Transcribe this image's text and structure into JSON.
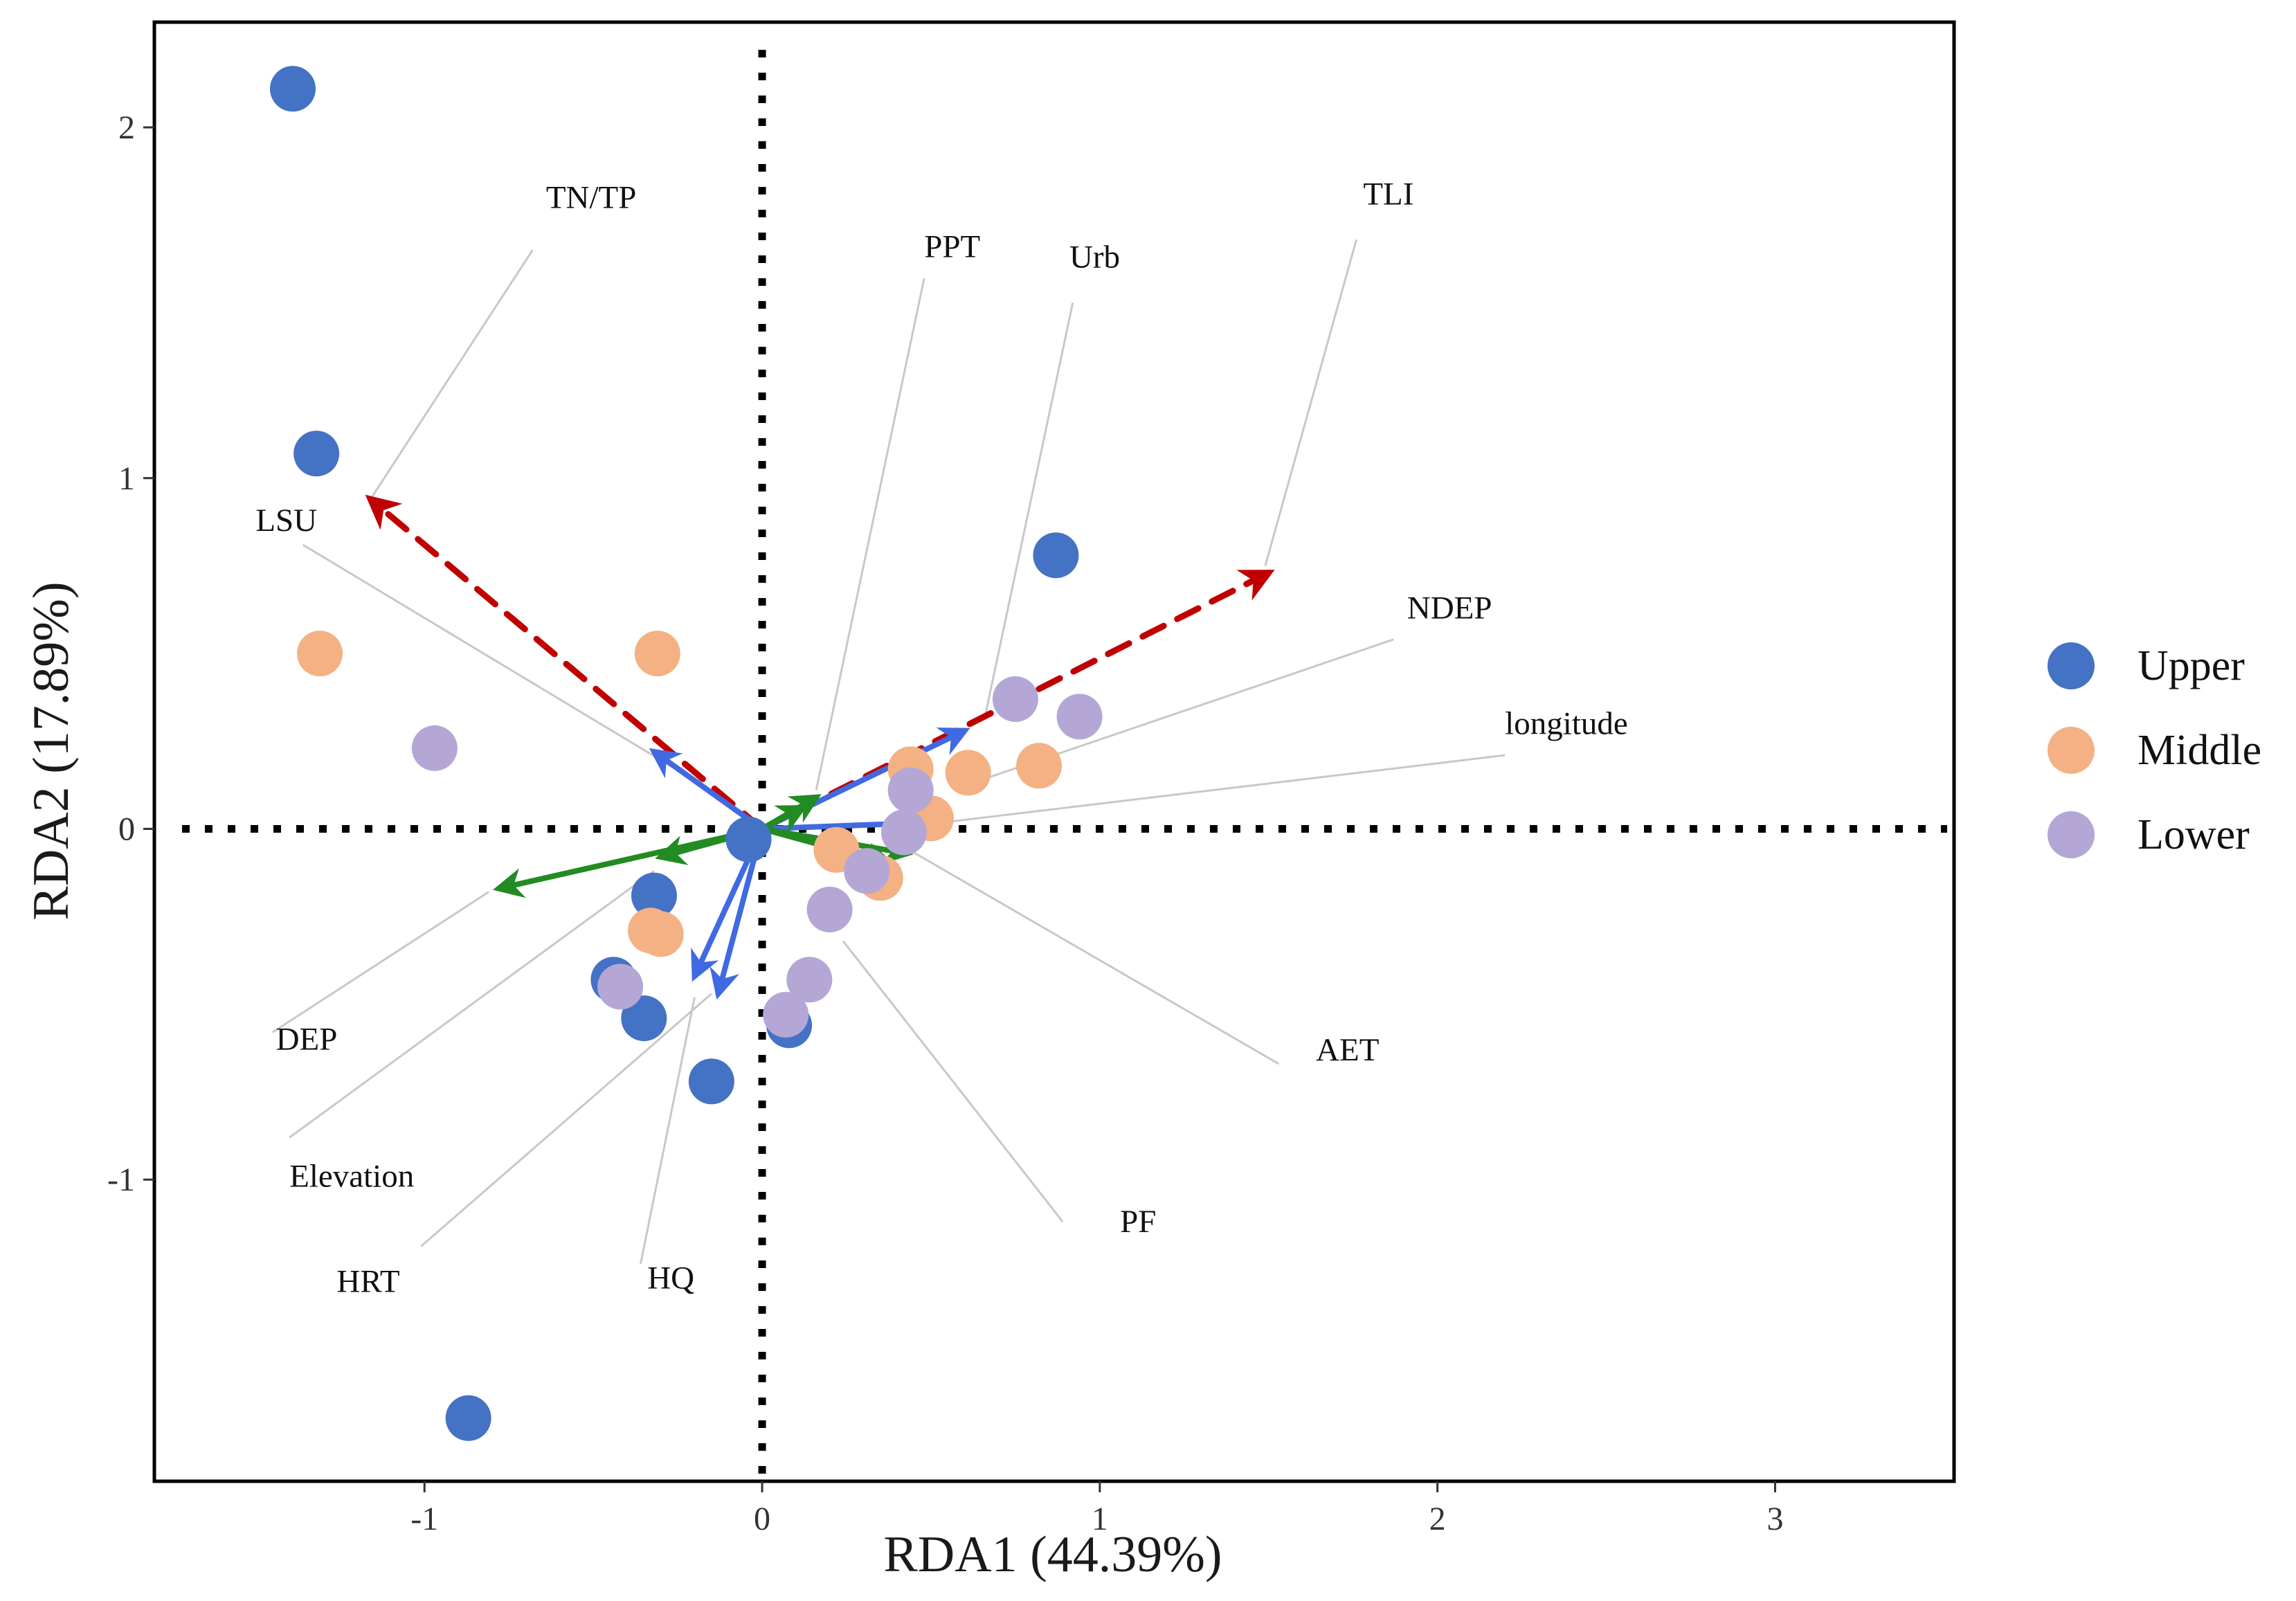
{
  "chart_data": {
    "type": "scatter",
    "title": "",
    "xlabel": "RDA1 (44.39%)",
    "ylabel": "RDA2 (17.89%)",
    "xlim": [
      -1.8,
      3.53
    ],
    "ylim": [
      -1.86,
      2.3
    ],
    "xticks": [
      -1,
      0,
      1,
      2,
      3
    ],
    "yticks": [
      -1,
      0,
      1,
      2
    ],
    "xtick_labels": [
      "-1",
      "0",
      "1",
      "2",
      "3"
    ],
    "ytick_labels": [
      "-1",
      "0",
      "1",
      "2"
    ],
    "zero_lines": "dotted",
    "legend_position": "right",
    "legend": [
      {
        "name": "Upper",
        "color": "#4472C4"
      },
      {
        "name": "Middle",
        "color": "#F4B183"
      },
      {
        "name": "Lower",
        "color": "#B4A7D6"
      }
    ],
    "series": [
      {
        "name": "Upper",
        "color": "#4472C4",
        "points": [
          [
            -1.39,
            2.11
          ],
          [
            -1.32,
            1.07
          ],
          [
            0.87,
            0.78
          ],
          [
            -0.32,
            -0.19
          ],
          [
            -0.44,
            -0.43
          ],
          [
            -0.35,
            -0.54
          ],
          [
            -0.15,
            -0.72
          ],
          [
            0.08,
            -0.56
          ],
          [
            -0.87,
            -1.68
          ],
          [
            -0.04,
            -0.03
          ]
        ]
      },
      {
        "name": "Middle",
        "color": "#F4B183",
        "points": [
          [
            -1.31,
            0.5
          ],
          [
            -0.31,
            0.5
          ],
          [
            0.44,
            0.17
          ],
          [
            0.61,
            0.16
          ],
          [
            0.82,
            0.18
          ],
          [
            0.5,
            0.03
          ],
          [
            0.22,
            -0.06
          ],
          [
            0.35,
            -0.14
          ],
          [
            -0.33,
            -0.29
          ],
          [
            -0.3,
            -0.3
          ]
        ]
      },
      {
        "name": "Lower",
        "color": "#B4A7D6",
        "points": [
          [
            -0.97,
            0.23
          ],
          [
            0.75,
            0.37
          ],
          [
            0.94,
            0.32
          ],
          [
            0.44,
            0.11
          ],
          [
            0.42,
            -0.01
          ],
          [
            0.31,
            -0.12
          ],
          [
            0.2,
            -0.23
          ],
          [
            0.14,
            -0.43
          ],
          [
            0.07,
            -0.53
          ],
          [
            -0.42,
            -0.45
          ]
        ]
      }
    ],
    "vectors": [
      {
        "name": "TN/TP",
        "style": "dashed",
        "color": "#C00000",
        "end": [
          -1.16,
          0.94
        ],
        "label_pos": [
          -0.64,
          1.77
        ],
        "leader_from": [
          -0.68,
          1.65
        ],
        "leader_to": [
          -1.16,
          0.94
        ]
      },
      {
        "name": "TLI",
        "style": "dashed",
        "color": "#C00000",
        "end": [
          1.5,
          0.73
        ],
        "label_pos": [
          1.78,
          1.78
        ],
        "leader_from": [
          1.76,
          1.68
        ],
        "leader_to": [
          1.49,
          0.75
        ]
      },
      {
        "name": "LSU",
        "style": "solid",
        "color": "#4169E1",
        "end": [
          -0.32,
          0.22
        ],
        "label_pos": [
          -1.5,
          0.85
        ],
        "leader_from": [
          -1.36,
          0.81
        ],
        "leader_to": [
          -0.1,
          0.08
        ]
      },
      {
        "name": "HQ",
        "style": "solid",
        "color": "#4169E1",
        "end": [
          -0.2,
          -0.42
        ],
        "label_pos": [
          -0.34,
          -1.31
        ],
        "leader_from": [
          -0.36,
          -1.24
        ],
        "leader_to": [
          -0.2,
          -0.48
        ]
      },
      {
        "name": "HRT",
        "style": "solid",
        "color": "#4169E1",
        "end": [
          -0.13,
          -0.47
        ],
        "label_pos": [
          -1.26,
          -1.32
        ],
        "leader_from": [
          -1.01,
          -1.19
        ],
        "leader_to": [
          -0.15,
          -0.47
        ]
      },
      {
        "name": "Urb",
        "style": "solid",
        "color": "#4169E1",
        "end": [
          0.6,
          0.28
        ],
        "label_pos": [
          0.91,
          1.6
        ],
        "leader_from": [
          0.92,
          1.5
        ],
        "leader_to": [
          0.66,
          0.32
        ]
      },
      {
        "name": "longitude",
        "style": "solid",
        "color": "#4169E1",
        "end": [
          0.55,
          0.02
        ],
        "label_pos": [
          2.2,
          0.27
        ],
        "leader_from": [
          2.2,
          0.21
        ],
        "leader_to": [
          0.55,
          0.02
        ]
      },
      {
        "name": "PPT",
        "style": "solid",
        "color": "#228B22",
        "end": [
          0.16,
          0.09
        ],
        "label_pos": [
          0.48,
          1.63
        ],
        "leader_from": [
          0.48,
          1.57
        ],
        "leader_to": [
          0.16,
          0.11
        ]
      },
      {
        "name": "NDEP",
        "style": "solid",
        "color": "#228B22",
        "end": [
          0.12,
          0.06
        ],
        "label_pos": [
          1.91,
          0.6
        ],
        "leader_from": [
          1.87,
          0.54
        ],
        "leader_to": [
          0.62,
          0.13
        ]
      },
      {
        "name": "AET",
        "style": "solid",
        "color": "#228B22",
        "end": [
          0.43,
          -0.07
        ],
        "label_pos": [
          1.64,
          -0.66
        ],
        "leader_from": [
          1.53,
          -0.67
        ],
        "leader_to": [
          0.4,
          -0.04
        ]
      },
      {
        "name": "PF",
        "style": "solid",
        "color": "#228B22",
        "end": [
          0.38,
          -0.1
        ],
        "label_pos": [
          1.06,
          -1.15
        ],
        "leader_from": [
          0.89,
          -1.12
        ],
        "leader_to": [
          0.24,
          -0.32
        ]
      },
      {
        "name": "DEP",
        "style": "solid",
        "color": "#228B22",
        "end": [
          -0.78,
          -0.17
        ],
        "label_pos": [
          -1.44,
          -0.63
        ],
        "leader_from": [
          -1.45,
          -0.58
        ],
        "leader_to": [
          -0.81,
          -0.18
        ]
      },
      {
        "name": "Elevation",
        "style": "solid",
        "color": "#228B22",
        "end": [
          -0.3,
          -0.08
        ],
        "label_pos": [
          -1.4,
          -1.02
        ],
        "leader_from": [
          -1.4,
          -0.88
        ],
        "leader_to": [
          -0.32,
          -0.12
        ]
      }
    ]
  }
}
